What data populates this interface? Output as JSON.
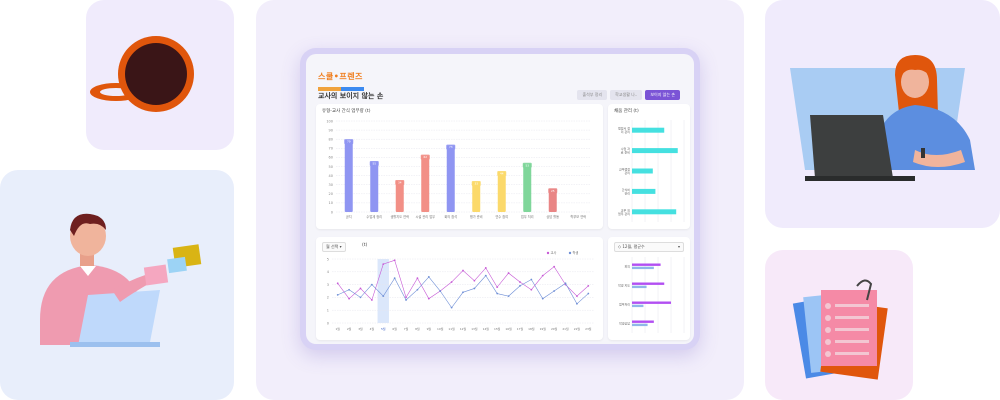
{
  "app": {
    "logo_text": "스쿨•프렌즈",
    "title": "교사의 보이지 않는 손",
    "tabs": [
      {
        "label": "출석부 정리",
        "active": false
      },
      {
        "label": "학교생활 나..",
        "active": false
      },
      {
        "label": "보이지 않는 손",
        "active": true
      }
    ]
  },
  "bar_panel": {
    "title": "유형-교사 간식 업무량 (t)",
    "chart_data": {
      "type": "bar",
      "categories": [
        "공지",
        "수업계 정리",
        "생활지도 연락",
        "시설 관리 업무",
        "회의 참석",
        "평가 준비",
        "연수 참여",
        "업무 처리",
        "상담 활동",
        "학부모 연락"
      ],
      "values": [
        79,
        55,
        34,
        62,
        73,
        33,
        44,
        53,
        25,
        0
      ],
      "ylim": [
        0,
        100
      ],
      "yticks": [
        0,
        10,
        20,
        30,
        40,
        50,
        60,
        70,
        80,
        90,
        100
      ],
      "colors": [
        "#8f95f2",
        "#8f95f2",
        "#f28f86",
        "#f28f86",
        "#8f95f2",
        "#fbd96b",
        "#fbd96b",
        "#7fd69a",
        "#e98585",
        "#e98585"
      ]
    }
  },
  "hbar_panel": {
    "title": "채움 관리 (t)",
    "chart_data": {
      "type": "bar",
      "orientation": "horizontal",
      "categories": [
        "행정서 정리 관리",
        "수업 자료 준비",
        "교무행정 관리",
        "간식비 관리",
        "교무 외 업무 관리"
      ],
      "values": [
        62,
        88,
        40,
        45,
        85
      ],
      "xlim": [
        0,
        100
      ],
      "color": "#45e0e0"
    }
  },
  "line_panel": {
    "select_label": "월 선택",
    "unit_label": "(t)",
    "legend": [
      "교사",
      "학생"
    ],
    "chart_data": {
      "type": "line",
      "categories": [
        "1월",
        "2월",
        "3월",
        "4월",
        "5월",
        "6월",
        "7월",
        "8월",
        "9월",
        "10월",
        "11월",
        "12월",
        "13월",
        "14월",
        "15월",
        "16월",
        "17월",
        "18월",
        "19월",
        "20월",
        "21월",
        "22월",
        "23월"
      ],
      "ylim": [
        0,
        5
      ],
      "yticks": [
        0,
        1,
        2,
        3,
        4,
        5
      ],
      "highlight_index": 4,
      "series": [
        {
          "name": "교사",
          "color": "#c75bd6",
          "values": [
            3.1,
            1.9,
            2.7,
            1.8,
            4.6,
            4.9,
            2.0,
            3.5,
            1.9,
            2.5,
            3.2,
            4.1,
            3.3,
            4.3,
            2.8,
            3.9,
            3.2,
            2.6,
            3.7,
            4.4,
            3.0,
            2.1,
            2.9
          ]
        },
        {
          "name": "학생",
          "color": "#6f8fd6",
          "values": [
            2.2,
            2.6,
            2.0,
            3.0,
            2.1,
            3.5,
            1.8,
            2.6,
            3.6,
            2.5,
            1.2,
            2.4,
            2.7,
            3.7,
            2.3,
            2.1,
            2.9,
            3.4,
            1.9,
            2.5,
            3.1,
            1.5,
            2.3
          ]
        }
      ]
    }
  },
  "hbar2_panel": {
    "select_label": "12월, 평균수",
    "chart_data": {
      "type": "bar",
      "orientation": "horizontal",
      "categories": [
        "회의",
        "학생 지도",
        "업무처리",
        "학생상담"
      ],
      "series": [
        {
          "name": "교사",
          "color": "#b24ff2",
          "values": [
            55,
            62,
            75,
            42
          ]
        },
        {
          "name": "학생",
          "color": "#8fb7e8",
          "values": [
            42,
            28,
            22,
            30
          ]
        }
      ],
      "xlim": [
        0,
        100
      ]
    }
  }
}
